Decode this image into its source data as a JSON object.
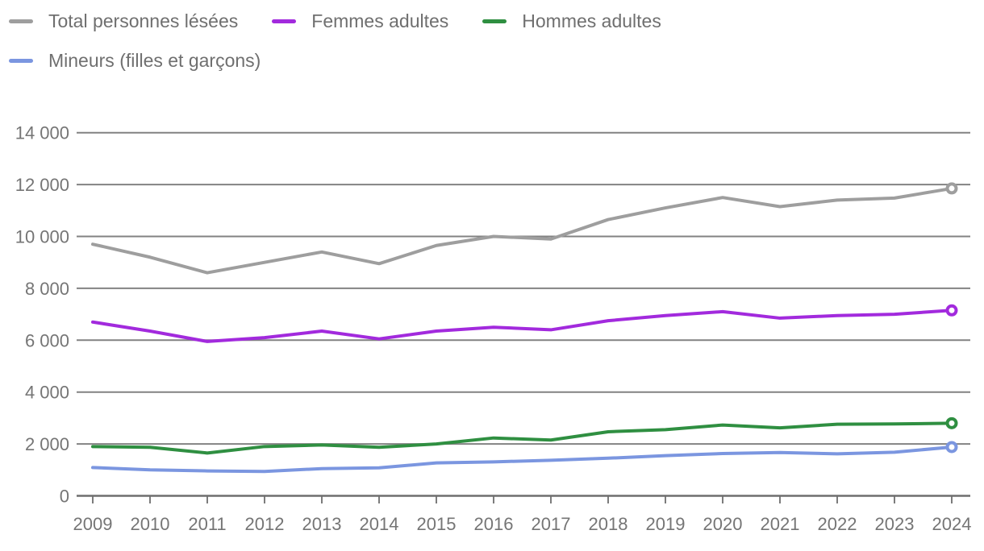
{
  "legend": {
    "items": [
      {
        "label": "Total personnes lésées",
        "color": "#9e9e9e"
      },
      {
        "label": "Femmes adultes",
        "color": "#a22add"
      },
      {
        "label": "Hommes adultes",
        "color": "#2f8f41"
      },
      {
        "label": "Mineurs (filles et garçons)",
        "color": "#7b96e0"
      }
    ]
  },
  "chart_data": {
    "type": "line",
    "x": [
      2009,
      2010,
      2011,
      2012,
      2013,
      2014,
      2015,
      2016,
      2017,
      2018,
      2019,
      2020,
      2021,
      2022,
      2023,
      2024
    ],
    "series": [
      {
        "name": "Total personnes lésées",
        "color": "#9e9e9e",
        "values": [
          9700,
          9200,
          8600,
          9000,
          9400,
          8950,
          9650,
          10000,
          9900,
          10650,
          11100,
          11500,
          11150,
          11400,
          11480,
          11850
        ]
      },
      {
        "name": "Femmes adultes",
        "color": "#a22add",
        "values": [
          6700,
          6350,
          5950,
          6100,
          6350,
          6050,
          6350,
          6500,
          6400,
          6750,
          6950,
          7100,
          6850,
          6950,
          7000,
          7150
        ]
      },
      {
        "name": "Hommes adultes",
        "color": "#2f8f41",
        "values": [
          1900,
          1870,
          1650,
          1900,
          1960,
          1870,
          2000,
          2230,
          2150,
          2470,
          2550,
          2730,
          2620,
          2760,
          2770,
          2800
        ]
      },
      {
        "name": "Mineurs (filles et garçons)",
        "color": "#7b96e0",
        "values": [
          1090,
          1000,
          960,
          940,
          1050,
          1080,
          1270,
          1310,
          1370,
          1450,
          1550,
          1630,
          1670,
          1620,
          1680,
          1880
        ]
      }
    ],
    "title": "",
    "xlabel": "",
    "ylabel": "",
    "ylim": [
      0,
      14000
    ],
    "ytick_step": 2000,
    "ytick_labels": [
      "0",
      "2 000",
      "4 000",
      "6 000",
      "8 000",
      "10 000",
      "12 000",
      "14 000"
    ],
    "xtick_labels": [
      "2009",
      "2010",
      "2011",
      "2012",
      "2013",
      "2014",
      "2015",
      "2016",
      "2017",
      "2018",
      "2019",
      "2020",
      "2021",
      "2022",
      "2023",
      "2024"
    ],
    "grid": true,
    "legend_position": "top-left",
    "end_markers": "open-circle"
  },
  "colors": {
    "gridline": "#828282",
    "axis": "#6e6e6e",
    "tick_text": "#757575",
    "legend_text": "#6f6f6f",
    "background": "#ffffff"
  }
}
